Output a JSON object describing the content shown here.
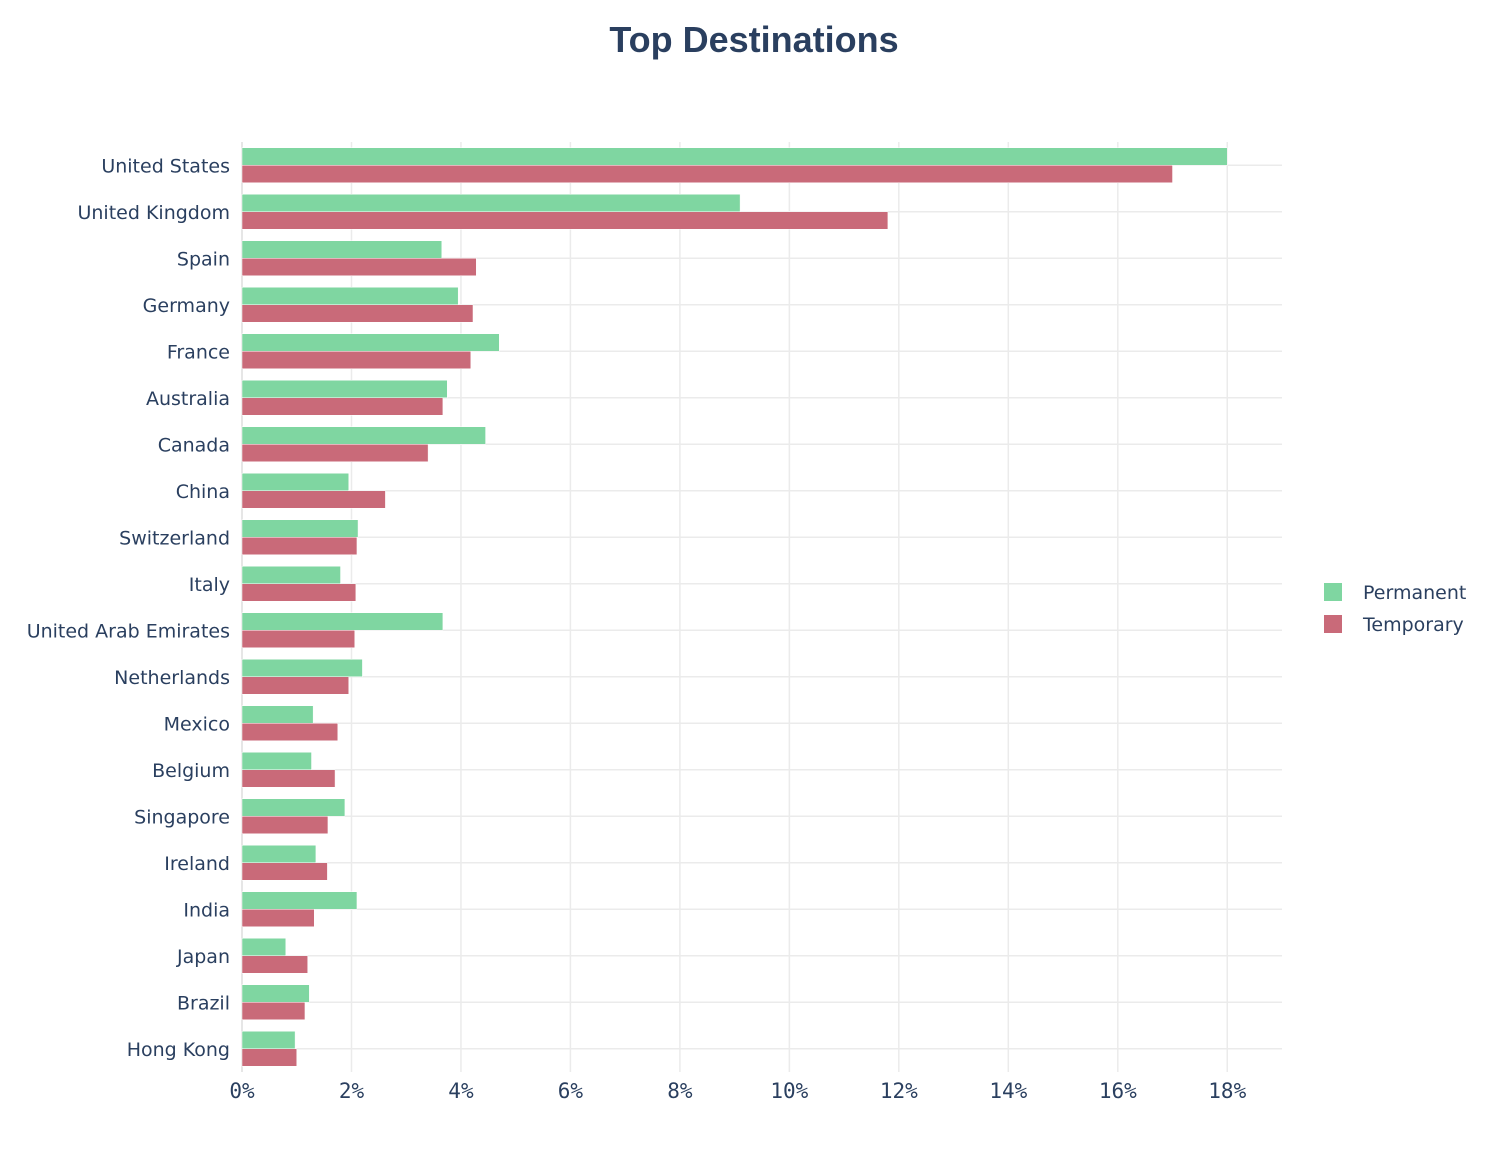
{
  "chart_data": {
    "type": "bar",
    "orientation": "horizontal",
    "title": "Top Destinations",
    "xlabel": "",
    "ylabel": "",
    "xlim": [
      0,
      19
    ],
    "x_ticks": [
      0,
      2,
      4,
      6,
      8,
      10,
      12,
      14,
      16,
      18
    ],
    "x_tick_labels": [
      "0%",
      "2%",
      "4%",
      "6%",
      "8%",
      "10%",
      "12%",
      "14%",
      "16%",
      "18%"
    ],
    "grid": true,
    "legend_position": "right",
    "categories": [
      "United States",
      "United Kingdom",
      "Spain",
      "Germany",
      "France",
      "Australia",
      "Canada",
      "China",
      "Switzerland",
      "Italy",
      "United Arab Emirates",
      "Netherlands",
      "Mexico",
      "Belgium",
      "Singapore",
      "Ireland",
      "India",
      "Japan",
      "Brazil",
      "Hong Kong"
    ],
    "series": [
      {
        "name": "Permanent",
        "color": "#7fd6a1",
        "values": [
          18.0,
          9.1,
          3.65,
          3.95,
          4.7,
          3.75,
          4.45,
          1.95,
          2.12,
          1.8,
          3.67,
          2.2,
          1.3,
          1.27,
          1.88,
          1.35,
          2.1,
          0.8,
          1.23,
          0.97
        ]
      },
      {
        "name": "Temporary",
        "color": "#c96a79",
        "values": [
          17.0,
          11.8,
          4.28,
          4.22,
          4.18,
          3.67,
          3.4,
          2.62,
          2.1,
          2.08,
          2.06,
          1.95,
          1.75,
          1.7,
          1.57,
          1.56,
          1.32,
          1.2,
          1.15,
          1.0
        ]
      }
    ]
  }
}
